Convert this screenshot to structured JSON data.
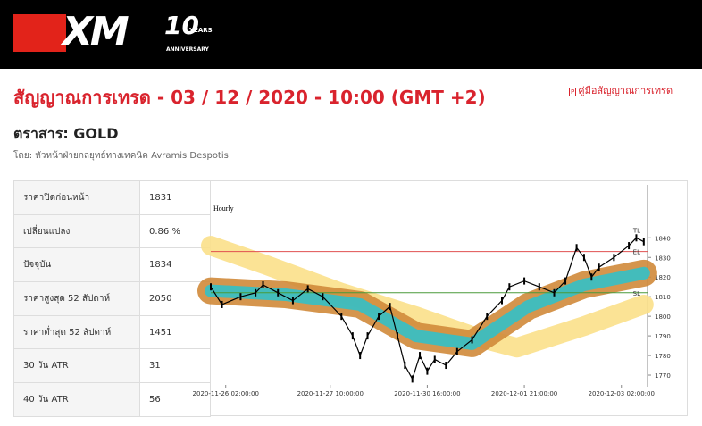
{
  "header": {
    "logo": {
      "brand": "XM",
      "years": "10",
      "caption_top": "YEARS",
      "caption_bottom": "ANNIVERSARY"
    }
  },
  "title": "สัญญาณการเทรด - 03 / 12 / 2020 - 10:00 (GMT +2)",
  "guide_link": "คู่มือสัญญาณการเทรด",
  "instrument": "ตราสาร: GOLD",
  "author": "โดย: หัวหน้าฝ่ายกลยุทธ์ทางเทคนิค Avramis Despotis",
  "table": {
    "rows": [
      [
        "ราคาปิดก่อนหน้า",
        "1831"
      ],
      [
        "เปลี่ยนแปลง",
        "0.86 %"
      ],
      [
        "ปัจจุบัน",
        "1834"
      ],
      [
        "ราคาสูงสุด 52 สัปดาห์",
        "2050"
      ],
      [
        "ราคาต่ำสุด 52 สัปดาห์",
        "1451"
      ],
      [
        "30 วัน ATR",
        "31"
      ],
      [
        "40 วัน ATR",
        "56"
      ]
    ]
  },
  "chart_data": {
    "type": "line",
    "title": "Hourly",
    "xlim": [
      0,
      117
    ],
    "ylim": [
      1765,
      1867
    ],
    "xticks": [
      {
        "value": 4,
        "label": "2020-11-26 02:00:00"
      },
      {
        "value": 32,
        "label": "2020-11-27 10:00:00"
      },
      {
        "value": 58,
        "label": "2020-11-30 16:00:00"
      },
      {
        "value": 84,
        "label": "2020-12-01 21:00:00"
      },
      {
        "value": 110,
        "label": "2020-12-03 02:00:00"
      }
    ],
    "yticks": [
      1770,
      1780,
      1790,
      1800,
      1810,
      1820,
      1830,
      1840
    ],
    "price": {
      "color": "#000000",
      "x": [
        0,
        3,
        8,
        12,
        14,
        18,
        22,
        26,
        30,
        35,
        38,
        40,
        42,
        45,
        48,
        50,
        52,
        54,
        56,
        58,
        60,
        63,
        66,
        70,
        74,
        78,
        80,
        84,
        88,
        92,
        95,
        98,
        100,
        102,
        104,
        108,
        112,
        114,
        116
      ],
      "values": [
        1815,
        1806,
        1810,
        1812,
        1816,
        1812,
        1808,
        1814,
        1810,
        1800,
        1790,
        1780,
        1790,
        1800,
        1805,
        1790,
        1775,
        1768,
        1780,
        1772,
        1778,
        1775,
        1782,
        1788,
        1800,
        1808,
        1815,
        1818,
        1815,
        1812,
        1818,
        1835,
        1830,
        1820,
        1825,
        1830,
        1836,
        1840,
        1838
      ]
    },
    "bands": [
      {
        "color": "#fbe08a",
        "x": [
          0,
          15,
          35,
          55,
          70,
          82,
          100,
          116
        ],
        "values": [
          1836,
          1826,
          1812,
          1800,
          1790,
          1784,
          1795,
          1806
        ]
      },
      {
        "color": "#d08a3a",
        "x": [
          0,
          20,
          40,
          55,
          70,
          85,
          100,
          116
        ],
        "values": [
          1813,
          1811,
          1806,
          1790,
          1786,
          1805,
          1816,
          1822
        ]
      },
      {
        "color": "#33c0c8",
        "x": [
          0,
          20,
          40,
          55,
          70,
          85,
          100,
          116
        ],
        "values": [
          1813,
          1811,
          1806,
          1790,
          1786,
          1805,
          1816,
          1822
        ]
      }
    ],
    "levels": [
      {
        "label": "TL",
        "value": 1844,
        "color": "#4a9a3a"
      },
      {
        "label": "EL",
        "value": 1833,
        "color": "#e05050"
      },
      {
        "label": "SL",
        "value": 1812,
        "color": "#4a9a3a"
      }
    ]
  }
}
